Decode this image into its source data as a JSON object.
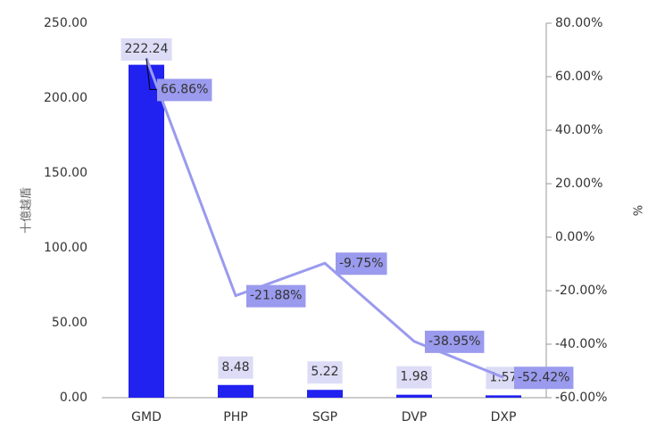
{
  "chart_data": {
    "type": "bar_line",
    "categories": [
      "GMD",
      "PHP",
      "SGP",
      "DVP",
      "DXP"
    ],
    "series": [
      {
        "name": "bar",
        "type": "bar",
        "color": "#2121f0",
        "values": [
          222.24,
          8.48,
          5.22,
          1.98,
          1.57
        ]
      },
      {
        "name": "line",
        "type": "line",
        "axis": "y2",
        "color": "#9a9aee",
        "values": [
          66.86,
          -21.88,
          -9.75,
          -38.95,
          -52.42
        ],
        "value_labels": [
          "66.86%",
          "-21.88%",
          "-9.75%",
          "-38.95%",
          "-52.42%"
        ]
      }
    ],
    "ylabel": "十億越盾",
    "y2label": "%",
    "ylim": [
      0,
      250
    ],
    "yticks": [
      {
        "value": 0,
        "label": "0.00"
      },
      {
        "value": 50,
        "label": "50.00"
      },
      {
        "value": 100,
        "label": "100.00"
      },
      {
        "value": 150,
        "label": "150.00"
      },
      {
        "value": 200,
        "label": "200.00"
      },
      {
        "value": 250,
        "label": "250.00"
      }
    ],
    "y2lim": [
      -60,
      80
    ],
    "y2ticks": [
      {
        "value": -60,
        "label": "-60.00%"
      },
      {
        "value": -40,
        "label": "-40.00%"
      },
      {
        "value": -20,
        "label": "-20.00%"
      },
      {
        "value": 0,
        "label": "0.00%"
      },
      {
        "value": 20,
        "label": "20.00%"
      },
      {
        "value": 40,
        "label": "40.00%"
      },
      {
        "value": 60,
        "label": "60.00%"
      },
      {
        "value": 80,
        "label": "80.00%"
      }
    ]
  }
}
